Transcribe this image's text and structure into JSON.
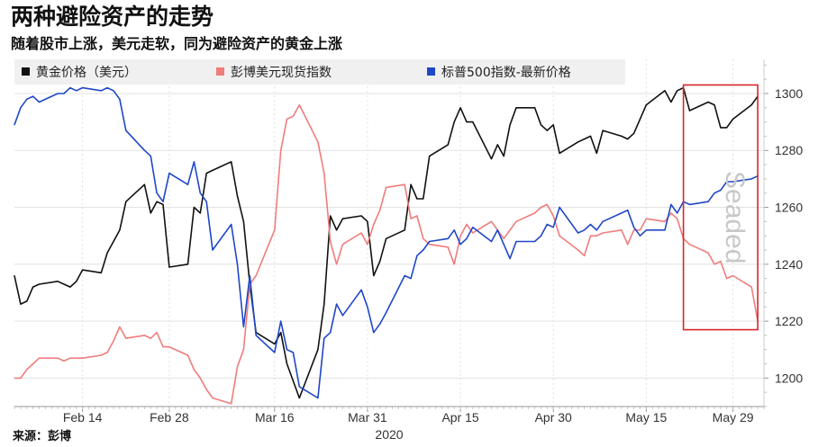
{
  "header": {
    "title": "两种避险资产的走势",
    "subtitle": "随着股市上涨，美元走软，同为避险资产的黄金上涨"
  },
  "source": "来源：彭博",
  "watermark": "Seaded",
  "colors": {
    "gold": "#111111",
    "dollar": "#f07c7c",
    "spx": "#1f47c8",
    "highlight": "#d9252c",
    "legend_bg": "#f0f0f0",
    "grid": "#e2e2e2"
  },
  "chart_data": {
    "type": "line",
    "title": "两种避险资产的走势",
    "subtitle": "随着股市上涨，美元走软，同为避险资产的黄金上涨",
    "x_ticks": [
      "Feb 14",
      "Feb 28",
      "Mar 16",
      "Mar 31",
      "Apr 15",
      "Apr 30",
      "May 15",
      "May 29"
    ],
    "x_sublabel": "2020",
    "x_range": [
      "2020-02-03",
      "2020-06-03"
    ],
    "y_ticks": [
      1200,
      1220,
      1240,
      1260,
      1280,
      1300
    ],
    "y_range": [
      1190,
      1312
    ],
    "legend": [
      "黄金价格（美元）",
      "彭博美元现货指数",
      "标普500指数-最新价格"
    ],
    "legend_position": "top",
    "grid": true,
    "highlight_box": {
      "x_start": "2020-05-21",
      "x_end": "2020-06-02",
      "y_low": 1217,
      "y_high": 1303
    },
    "series": [
      {
        "name": "黄金价格（美元）",
        "color": "#111111",
        "x": [
          "2020-02-03",
          "2020-02-04",
          "2020-02-05",
          "2020-02-06",
          "2020-02-07",
          "2020-02-10",
          "2020-02-11",
          "2020-02-12",
          "2020-02-13",
          "2020-02-14",
          "2020-02-17",
          "2020-02-18",
          "2020-02-19",
          "2020-02-20",
          "2020-02-21",
          "2020-02-24",
          "2020-02-25",
          "2020-02-26",
          "2020-02-27",
          "2020-02-28",
          "2020-03-02",
          "2020-03-03",
          "2020-03-04",
          "2020-03-05",
          "2020-03-06",
          "2020-03-09",
          "2020-03-10",
          "2020-03-11",
          "2020-03-12",
          "2020-03-13",
          "2020-03-16",
          "2020-03-17",
          "2020-03-18",
          "2020-03-19",
          "2020-03-20",
          "2020-03-23",
          "2020-03-24",
          "2020-03-25",
          "2020-03-26",
          "2020-03-27",
          "2020-03-30",
          "2020-03-31",
          "2020-04-01",
          "2020-04-02",
          "2020-04-03",
          "2020-04-06",
          "2020-04-07",
          "2020-04-08",
          "2020-04-09",
          "2020-04-10",
          "2020-04-13",
          "2020-04-14",
          "2020-04-15",
          "2020-04-16",
          "2020-04-17",
          "2020-04-20",
          "2020-04-21",
          "2020-04-22",
          "2020-04-23",
          "2020-04-24",
          "2020-04-27",
          "2020-04-28",
          "2020-04-29",
          "2020-04-30",
          "2020-05-01",
          "2020-05-04",
          "2020-05-05",
          "2020-05-06",
          "2020-05-07",
          "2020-05-08",
          "2020-05-11",
          "2020-05-12",
          "2020-05-13",
          "2020-05-14",
          "2020-05-15",
          "2020-05-18",
          "2020-05-19",
          "2020-05-20",
          "2020-05-21",
          "2020-05-22",
          "2020-05-25",
          "2020-05-26",
          "2020-05-27",
          "2020-05-28",
          "2020-05-29",
          "2020-06-01",
          "2020-06-02"
        ],
        "values": [
          1236,
          1226,
          1227,
          1232,
          1233,
          1234,
          1233,
          1232,
          1234,
          1238,
          1237,
          1244,
          1248,
          1252,
          1262,
          1268,
          1258,
          1262,
          1261,
          1239,
          1240,
          1260,
          1258,
          1272,
          1273,
          1276,
          1264,
          1255,
          1233,
          1216,
          1212,
          1216,
          1205,
          1199,
          1193,
          1210,
          1226,
          1257,
          1252,
          1256,
          1257,
          1255,
          1236,
          1241,
          1249,
          1252,
          1268,
          1263,
          1263,
          1278,
          1282,
          1290,
          1295,
          1290,
          1290,
          1277,
          1282,
          1278,
          1289,
          1295,
          1295,
          1289,
          1287,
          1289,
          1279,
          1283,
          1284,
          1285,
          1279,
          1287,
          1285,
          1284,
          1286,
          1291,
          1296,
          1301,
          1297,
          1301,
          1302,
          1294,
          1297,
          1296,
          1288,
          1288,
          1291,
          1296,
          1299
        ]
      },
      {
        "name": "彭博美元现货指数",
        "color": "#f07c7c",
        "x": [
          "2020-02-03",
          "2020-02-04",
          "2020-02-05",
          "2020-02-06",
          "2020-02-07",
          "2020-02-10",
          "2020-02-11",
          "2020-02-12",
          "2020-02-13",
          "2020-02-14",
          "2020-02-17",
          "2020-02-18",
          "2020-02-19",
          "2020-02-20",
          "2020-02-21",
          "2020-02-24",
          "2020-02-25",
          "2020-02-26",
          "2020-02-27",
          "2020-02-28",
          "2020-03-02",
          "2020-03-03",
          "2020-03-04",
          "2020-03-05",
          "2020-03-06",
          "2020-03-09",
          "2020-03-10",
          "2020-03-11",
          "2020-03-12",
          "2020-03-13",
          "2020-03-16",
          "2020-03-17",
          "2020-03-18",
          "2020-03-19",
          "2020-03-20",
          "2020-03-23",
          "2020-03-24",
          "2020-03-25",
          "2020-03-26",
          "2020-03-27",
          "2020-03-30",
          "2020-03-31",
          "2020-04-01",
          "2020-04-02",
          "2020-04-03",
          "2020-04-06",
          "2020-04-07",
          "2020-04-08",
          "2020-04-09",
          "2020-04-10",
          "2020-04-13",
          "2020-04-14",
          "2020-04-15",
          "2020-04-16",
          "2020-04-17",
          "2020-04-20",
          "2020-04-21",
          "2020-04-22",
          "2020-04-23",
          "2020-04-24",
          "2020-04-27",
          "2020-04-28",
          "2020-04-29",
          "2020-04-30",
          "2020-05-01",
          "2020-05-04",
          "2020-05-05",
          "2020-05-06",
          "2020-05-07",
          "2020-05-08",
          "2020-05-11",
          "2020-05-12",
          "2020-05-13",
          "2020-05-14",
          "2020-05-15",
          "2020-05-18",
          "2020-05-19",
          "2020-05-20",
          "2020-05-21",
          "2020-05-22",
          "2020-05-25",
          "2020-05-26",
          "2020-05-27",
          "2020-05-28",
          "2020-05-29",
          "2020-06-01",
          "2020-06-02"
        ],
        "values": [
          1200,
          1200,
          1203,
          1205,
          1207,
          1207,
          1206,
          1207,
          1207,
          1207,
          1208,
          1209,
          1213,
          1218,
          1214,
          1215,
          1214,
          1216,
          1211,
          1211,
          1208,
          1203,
          1200,
          1196,
          1193,
          1191,
          1204,
          1210,
          1233,
          1236,
          1252,
          1280,
          1291,
          1292,
          1296,
          1283,
          1272,
          1248,
          1240,
          1247,
          1251,
          1247,
          1254,
          1259,
          1267,
          1268,
          1256,
          1257,
          1249,
          1247,
          1246,
          1240,
          1250,
          1254,
          1251,
          1255,
          1252,
          1249,
          1252,
          1255,
          1258,
          1260,
          1261,
          1257,
          1250,
          1245,
          1243,
          1250,
          1250,
          1251,
          1252,
          1247,
          1252,
          1252,
          1256,
          1255,
          1258,
          1256,
          1249,
          1247,
          1244,
          1240,
          1241,
          1235,
          1236,
          1232,
          1220
        ]
      },
      {
        "name": "标普500指数-最新价格",
        "color": "#1f47c8",
        "x": [
          "2020-02-03",
          "2020-02-04",
          "2020-02-05",
          "2020-02-06",
          "2020-02-07",
          "2020-02-10",
          "2020-02-11",
          "2020-02-12",
          "2020-02-13",
          "2020-02-14",
          "2020-02-17",
          "2020-02-18",
          "2020-02-19",
          "2020-02-20",
          "2020-02-21",
          "2020-02-24",
          "2020-02-25",
          "2020-02-26",
          "2020-02-27",
          "2020-02-28",
          "2020-03-02",
          "2020-03-03",
          "2020-03-04",
          "2020-03-05",
          "2020-03-06",
          "2020-03-09",
          "2020-03-10",
          "2020-03-11",
          "2020-03-12",
          "2020-03-13",
          "2020-03-16",
          "2020-03-17",
          "2020-03-18",
          "2020-03-19",
          "2020-03-20",
          "2020-03-23",
          "2020-03-24",
          "2020-03-25",
          "2020-03-26",
          "2020-03-27",
          "2020-03-30",
          "2020-03-31",
          "2020-04-01",
          "2020-04-02",
          "2020-04-03",
          "2020-04-06",
          "2020-04-07",
          "2020-04-08",
          "2020-04-09",
          "2020-04-10",
          "2020-04-13",
          "2020-04-14",
          "2020-04-15",
          "2020-04-16",
          "2020-04-17",
          "2020-04-20",
          "2020-04-21",
          "2020-04-22",
          "2020-04-23",
          "2020-04-24",
          "2020-04-27",
          "2020-04-28",
          "2020-04-29",
          "2020-04-30",
          "2020-05-01",
          "2020-05-04",
          "2020-05-05",
          "2020-05-06",
          "2020-05-07",
          "2020-05-08",
          "2020-05-11",
          "2020-05-12",
          "2020-05-13",
          "2020-05-14",
          "2020-05-15",
          "2020-05-18",
          "2020-05-19",
          "2020-05-20",
          "2020-05-21",
          "2020-05-22",
          "2020-05-25",
          "2020-05-26",
          "2020-05-27",
          "2020-05-28",
          "2020-05-29",
          "2020-06-01",
          "2020-06-02"
        ],
        "values": [
          1289,
          1295,
          1298,
          1299,
          1297,
          1300,
          1300,
          1302,
          1301,
          1302,
          1301,
          1302,
          1301,
          1298,
          1287,
          1280,
          1278,
          1265,
          1262,
          1272,
          1268,
          1276,
          1265,
          1262,
          1245,
          1254,
          1240,
          1218,
          1236,
          1215,
          1209,
          1220,
          1210,
          1209,
          1197,
          1193,
          1214,
          1216,
          1226,
          1222,
          1231,
          1225,
          1216,
          1219,
          1223,
          1236,
          1235,
          1243,
          1245,
          1248,
          1249,
          1252,
          1247,
          1249,
          1253,
          1248,
          1252,
          1247,
          1242,
          1248,
          1248,
          1250,
          1254,
          1253,
          1260,
          1251,
          1252,
          1254,
          1252,
          1255,
          1258,
          1259,
          1253,
          1250,
          1252,
          1252,
          1261,
          1258,
          1262,
          1261,
          1262,
          1265,
          1266,
          1269,
          1269,
          1270,
          1271
        ]
      }
    ]
  }
}
